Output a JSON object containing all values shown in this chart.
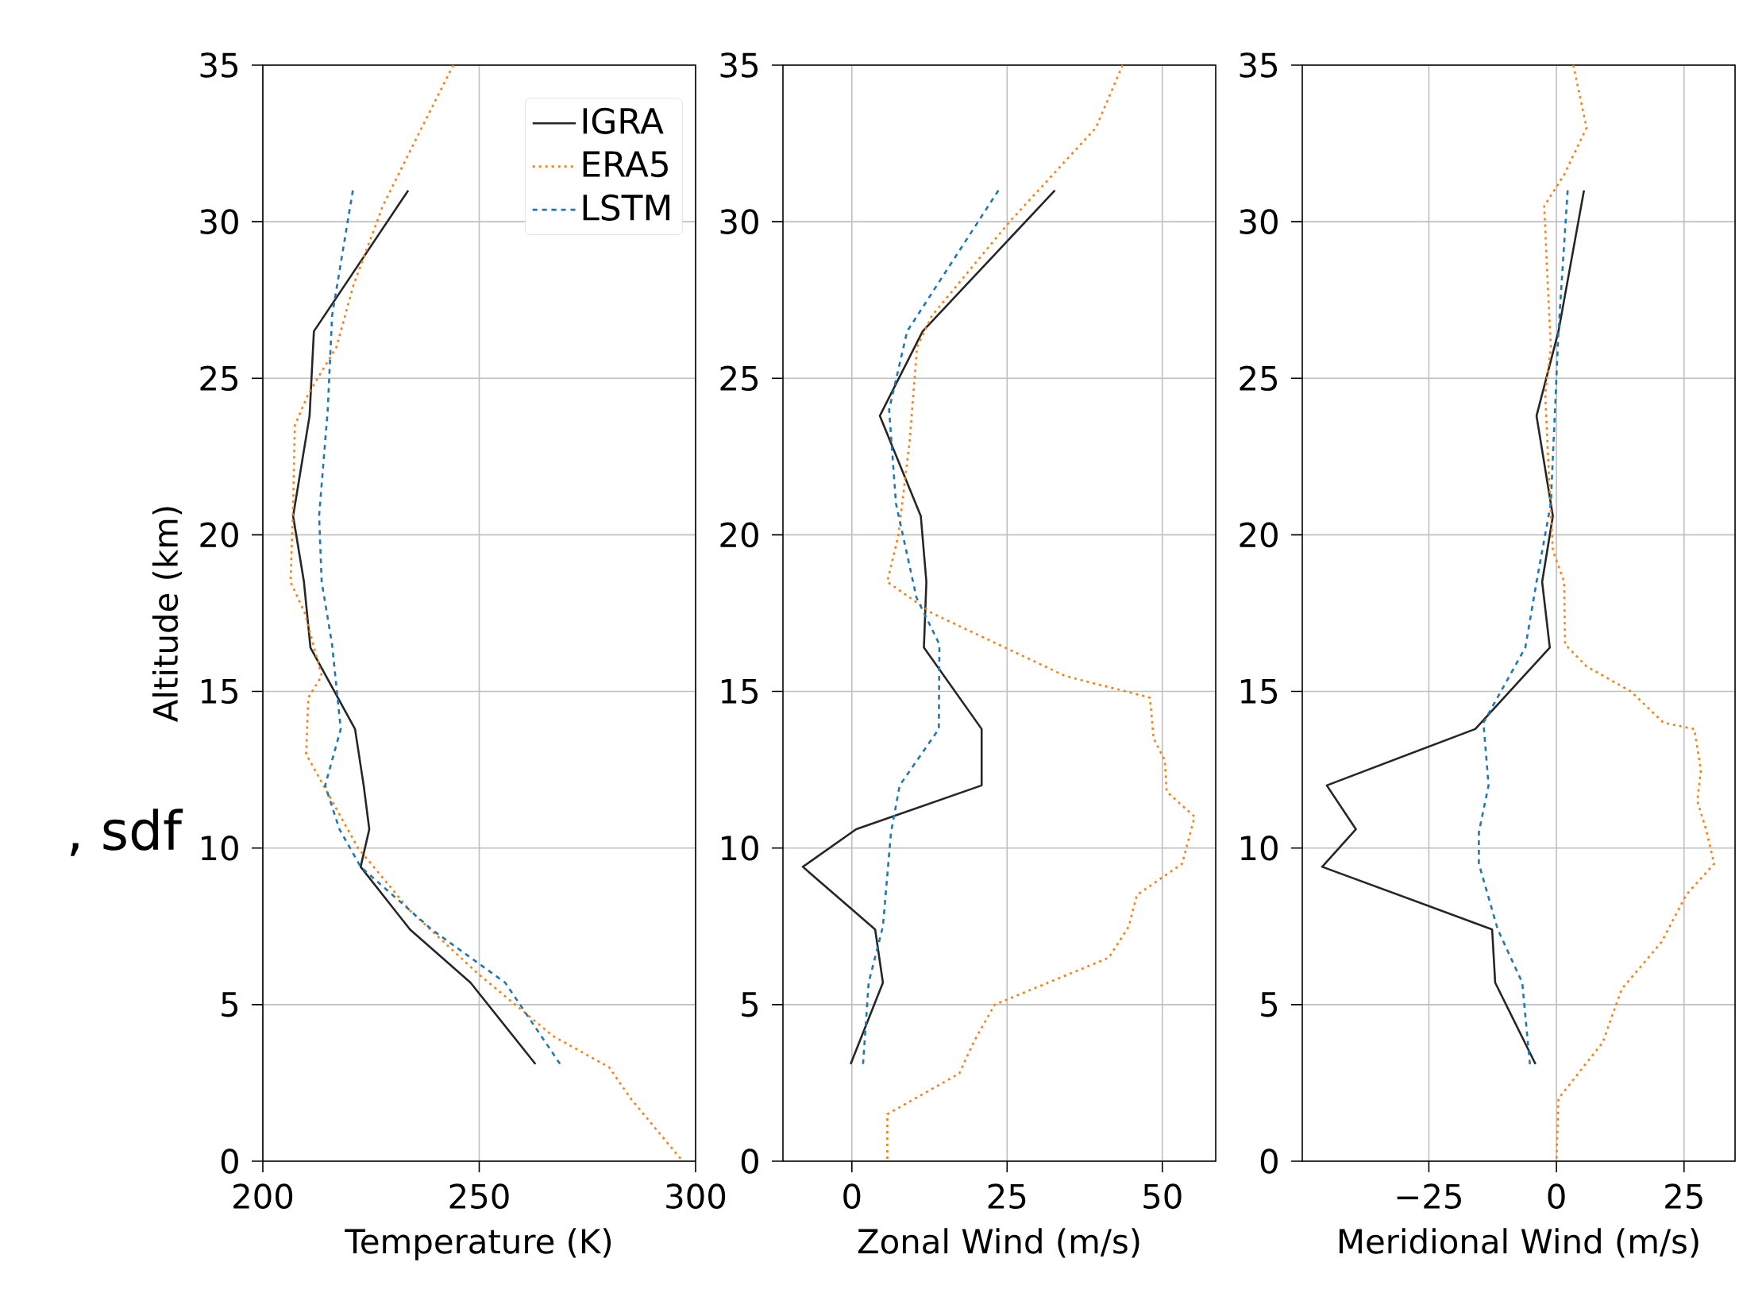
{
  "chart_data": [
    {
      "type": "line",
      "xlabel": "Temperature (K)",
      "ylabel": "Altitude (km)",
      "xlim": [
        200,
        300
      ],
      "xticks": [
        200,
        250,
        300
      ],
      "ylim": [
        0,
        35
      ],
      "yticks": [
        0,
        5,
        10,
        15,
        20,
        25,
        30,
        35
      ],
      "grid": true,
      "legend": "top right",
      "annotations": [
        ", sdf"
      ],
      "series": [
        {
          "name": "IGRA",
          "color": "#262626",
          "line_style": "solid",
          "x": [
            233.6,
            211.8,
            210.8,
            207,
            209.5,
            211,
            221.3,
            223.3,
            224.6,
            222.6,
            234,
            248,
            263
          ],
          "values": [
            31,
            26.5,
            23.8,
            20.6,
            18.5,
            16.4,
            13.8,
            12,
            10.6,
            9.4,
            7.4,
            5.7,
            3.1
          ]
        },
        {
          "name": "ERA5",
          "color": "#ff7f0e",
          "line_style": "dotted",
          "x": [
            244,
            236.7,
            227.7,
            221,
            217,
            210.5,
            207.4,
            207,
            206.4,
            209.7,
            213.6,
            210.5,
            210,
            216,
            222,
            234,
            249.6,
            267,
            280,
            285,
            297
          ],
          "values": [
            35,
            33,
            30.5,
            28,
            26,
            24.5,
            23.5,
            21,
            18.5,
            17.5,
            15.5,
            14.8,
            13,
            11.5,
            10,
            8,
            6,
            4,
            3,
            2,
            0
          ]
        },
        {
          "name": "LSTM",
          "color": "#1f77b4",
          "line_style": "dashed",
          "x": [
            220.8,
            216,
            215,
            213,
            213.6,
            216,
            218,
            214.4,
            217.7,
            222.6,
            239,
            256,
            268.7
          ],
          "values": [
            31,
            27,
            24,
            20.6,
            18.5,
            16.5,
            13.8,
            12,
            10.6,
            9.4,
            7.4,
            5.7,
            3.1
          ]
        }
      ]
    },
    {
      "type": "line",
      "xlabel": "Zonal Wind (m/s)",
      "xlim": [
        -11.1,
        58.6
      ],
      "xticks": [
        0,
        25,
        50
      ],
      "ylim": [
        0,
        35
      ],
      "yticks": [
        0,
        5,
        10,
        15,
        20,
        25,
        30,
        35
      ],
      "grid": true,
      "series": [
        {
          "color": "#262626",
          "line_style": "solid",
          "x": [
            32.7,
            11.4,
            4.5,
            11.1,
            12,
            11.6,
            20.9,
            20.9,
            0.7,
            -7.9,
            3.75,
            5,
            -0.2
          ],
          "values": [
            31,
            26.5,
            23.8,
            20.6,
            18.5,
            16.4,
            13.8,
            12,
            10.6,
            9.4,
            7.4,
            5.7,
            3.1
          ]
        },
        {
          "color": "#ff7f0e",
          "line_style": "dotted",
          "x": [
            43.6,
            39.3,
            25.4,
            12.9,
            10.5,
            9.3,
            7.5,
            5.7,
            12.9,
            23.6,
            34.3,
            48,
            48.6,
            50.4,
            50.7,
            55.2,
            53.2,
            45.9,
            44.6,
            41.4,
            23,
            19.6,
            17.3,
            5.7,
            5.7
          ],
          "values": [
            35,
            33,
            30,
            27,
            26,
            23,
            20,
            18.5,
            17.5,
            16.5,
            15.5,
            14.8,
            13.5,
            12.8,
            11.8,
            11,
            9.5,
            8.5,
            7.5,
            6.5,
            5,
            3.8,
            2.8,
            1.5,
            0
          ]
        },
        {
          "color": "#1f77b4",
          "line_style": "dashed",
          "x": [
            23.6,
            8.9,
            6,
            7.1,
            10.4,
            14.1,
            14,
            7.7,
            6.3,
            5,
            2.7,
            1.8
          ],
          "values": [
            31,
            26.5,
            24,
            21,
            18,
            16.5,
            13.8,
            12,
            10.5,
            7.5,
            5.7,
            3.1
          ]
        }
      ]
    },
    {
      "type": "line",
      "xlabel": "Meridional Wind (m/s)",
      "xlim": [
        -49.8,
        35
      ],
      "xticks": [
        {
          "value": -25,
          "label": "−25"
        },
        0,
        25
      ],
      "ylim": [
        0,
        35
      ],
      "yticks": [
        0,
        5,
        10,
        15,
        20,
        25,
        30,
        35
      ],
      "grid": true,
      "series": [
        {
          "color": "#262626",
          "line_style": "solid",
          "x": [
            5.4,
            0.4,
            -3.9,
            -0.7,
            -2.8,
            -1.3,
            -15.9,
            -45,
            -39.3,
            -45.9,
            -12.6,
            -12,
            -4.1
          ],
          "values": [
            31,
            26.5,
            23.8,
            20.6,
            18.5,
            16.4,
            13.8,
            12,
            10.6,
            9.4,
            7.4,
            5.7,
            3.1
          ]
        },
        {
          "color": "#ff7f0e",
          "line_style": "dotted",
          "x": [
            3.3,
            5.9,
            1.5,
            -2.4,
            -1.7,
            -1.1,
            -2.2,
            -1.5,
            -0.7,
            1.5,
            1.7,
            5.9,
            14.6,
            21,
            27,
            28.3,
            27.6,
            29.3,
            30.9,
            25.4,
            20.6,
            12.8,
            10.6,
            9.1,
            0.4,
            0
          ],
          "values": [
            35,
            33,
            31.5,
            30.5,
            28,
            26,
            24.5,
            22,
            19.5,
            18.5,
            16.5,
            15.8,
            15,
            14,
            13.8,
            12.5,
            11.5,
            10.6,
            9.5,
            8.5,
            7,
            5.5,
            4.5,
            3.8,
            2,
            0
          ]
        },
        {
          "color": "#1f77b4",
          "line_style": "dashed",
          "x": [
            2.2,
            0.4,
            -1.1,
            -3.9,
            -6.1,
            -14.3,
            -13.3,
            -15.2,
            -15.2,
            -11.5,
            -6.7,
            -5.2
          ],
          "values": [
            31,
            26.5,
            21,
            18.5,
            16.4,
            14,
            12,
            10.5,
            9.5,
            7.4,
            5.7,
            3.1
          ]
        }
      ]
    }
  ]
}
